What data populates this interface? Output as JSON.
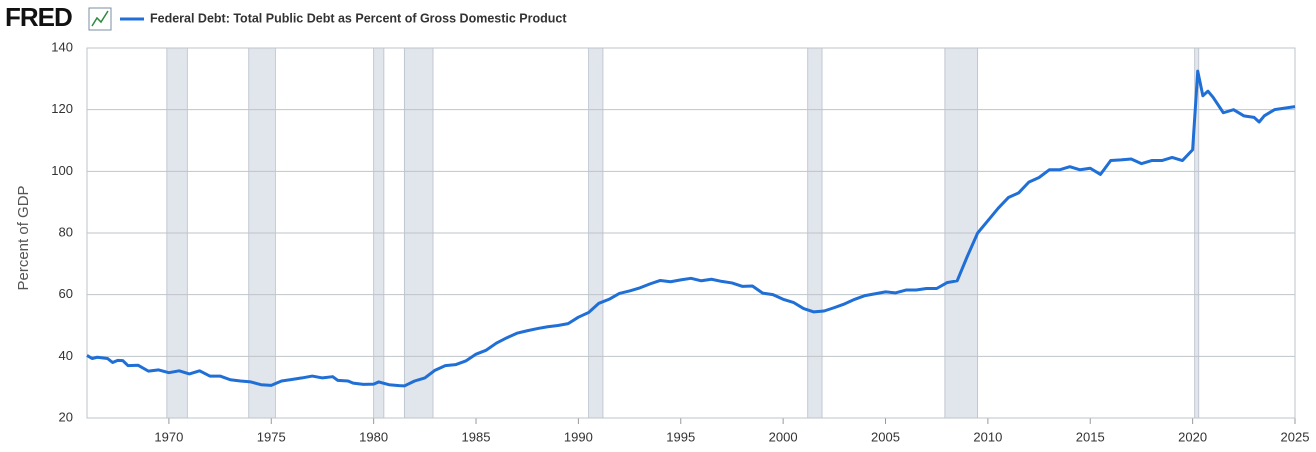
{
  "logo": "FRED",
  "chart_data": {
    "type": "line",
    "title": "Federal Debt: Total Public Debt as Percent of Gross Domestic Product",
    "y_label": "Percent of GDP",
    "xlim": [
      1966,
      2025
    ],
    "xticks": [
      1970,
      1975,
      1980,
      1985,
      1990,
      1995,
      2000,
      2005,
      2010,
      2015,
      2020,
      2025
    ],
    "ylim": [
      20,
      140
    ],
    "yticks": [
      20,
      40,
      60,
      80,
      100,
      120,
      140
    ],
    "grid": true,
    "recessions": [
      [
        1969.9,
        1970.9
      ],
      [
        1973.9,
        1975.2
      ],
      [
        1980.0,
        1980.5
      ],
      [
        1981.5,
        1982.9
      ],
      [
        1990.5,
        1991.2
      ],
      [
        2001.2,
        2001.9
      ],
      [
        2007.9,
        2009.5
      ],
      [
        2020.1,
        2020.3
      ]
    ],
    "x": [
      1966.0,
      1966.25,
      1966.5,
      1967.0,
      1967.25,
      1967.5,
      1967.75,
      1968.0,
      1968.5,
      1969.0,
      1969.5,
      1970.0,
      1970.5,
      1971.0,
      1971.5,
      1972.0,
      1972.5,
      1973.0,
      1973.5,
      1974.0,
      1974.5,
      1975.0,
      1975.5,
      1976.0,
      1976.5,
      1977.0,
      1977.5,
      1978.0,
      1978.25,
      1978.75,
      1979.0,
      1979.5,
      1980.0,
      1980.25,
      1980.75,
      1981.25,
      1981.5,
      1982.0,
      1982.5,
      1983.0,
      1983.5,
      1984.0,
      1984.5,
      1985.0,
      1985.5,
      1986.0,
      1986.5,
      1987.0,
      1987.5,
      1988.0,
      1988.5,
      1989.0,
      1989.5,
      1990.0,
      1990.5,
      1991.0,
      1991.5,
      1992.0,
      1992.5,
      1993.0,
      1993.5,
      1994.0,
      1994.5,
      1995.0,
      1995.5,
      1996.0,
      1996.5,
      1997.0,
      1997.5,
      1998.0,
      1998.5,
      1999.0,
      1999.5,
      2000.0,
      2000.5,
      2001.0,
      2001.5,
      2002.0,
      2002.5,
      2003.0,
      2003.5,
      2004.0,
      2004.5,
      2005.0,
      2005.5,
      2006.0,
      2006.5,
      2007.0,
      2007.5,
      2008.0,
      2008.5,
      2009.0,
      2009.5,
      2010.0,
      2010.5,
      2011.0,
      2011.5,
      2012.0,
      2012.5,
      2013.0,
      2013.5,
      2014.0,
      2014.5,
      2015.0,
      2015.5,
      2016.0,
      2016.5,
      2017.0,
      2017.5,
      2018.0,
      2018.5,
      2019.0,
      2019.5,
      2020.0,
      2020.25,
      2020.5,
      2020.75,
      2021.0,
      2021.5,
      2022.0,
      2022.5,
      2023.0,
      2023.25,
      2023.5,
      2024.0,
      2024.5,
      2025.0
    ],
    "series": [
      {
        "name": "Federal Debt: Total Public Debt as Percent of Gross Domestic Product",
        "color": "#1f6fd6",
        "values": [
          40.3,
          39.3,
          39.7,
          39.3,
          38.0,
          38.7,
          38.6,
          37.0,
          37.1,
          35.2,
          35.6,
          34.7,
          35.3,
          34.3,
          35.3,
          33.6,
          33.6,
          32.4,
          32.0,
          31.7,
          30.8,
          30.6,
          32.0,
          32.5,
          33.0,
          33.6,
          33.0,
          33.4,
          32.2,
          32.0,
          31.3,
          30.9,
          31.0,
          31.7,
          30.8,
          30.5,
          30.4,
          32.0,
          33.0,
          35.5,
          37.0,
          37.3,
          38.5,
          40.7,
          42.0,
          44.3,
          46.0,
          47.5,
          48.3,
          49.0,
          49.6,
          50.0,
          50.6,
          52.7,
          54.2,
          57.2,
          58.5,
          60.4,
          61.2,
          62.2,
          63.5,
          64.6,
          64.2,
          64.8,
          65.3,
          64.5,
          65.0,
          64.3,
          63.8,
          62.7,
          62.8,
          60.5,
          60.0,
          58.5,
          57.5,
          55.5,
          54.4,
          54.7,
          55.8,
          57.0,
          58.5,
          59.7,
          60.3,
          60.9,
          60.6,
          61.5,
          61.5,
          62.0,
          62.0,
          63.9,
          64.5,
          72.5,
          80.0,
          84.0,
          88.0,
          91.5,
          93.0,
          96.5,
          98.0,
          100.5,
          100.5,
          101.5,
          100.5,
          101.0,
          99.0,
          103.5,
          103.7,
          104.0,
          102.5,
          103.5,
          103.5,
          104.5,
          103.5,
          107.0,
          132.5,
          124.5,
          126.0,
          124.0,
          119.0,
          120.0,
          118.0,
          117.5,
          116.0,
          118.0,
          120.0,
          120.5,
          121.0
        ]
      }
    ]
  }
}
